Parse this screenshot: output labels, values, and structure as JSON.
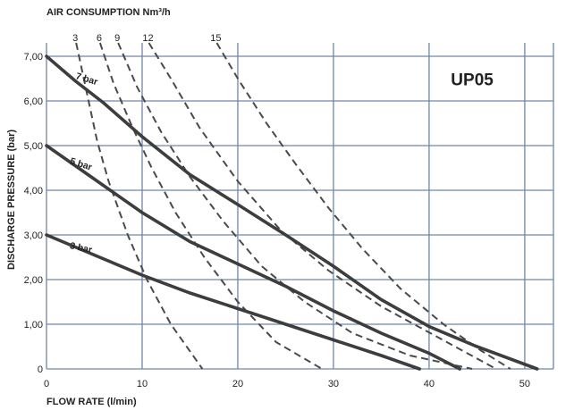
{
  "chart_data": {
    "type": "line",
    "title": "UP05",
    "xlabel": "FLOW RATE (l/min)",
    "ylabel": "DISCHARGE PRESSURE (bar)",
    "top_axis_label": "AIR CONSUMPTION Nm³/h",
    "xlim": [
      0,
      53
    ],
    "ylim": [
      0,
      7.3
    ],
    "x_ticks": [
      {
        "value": 0,
        "label": "0"
      },
      {
        "value": 10,
        "label": "10"
      },
      {
        "value": 20,
        "label": "20"
      },
      {
        "value": 30,
        "label": "30"
      },
      {
        "value": 40,
        "label": "40"
      },
      {
        "value": 50,
        "label": "50"
      }
    ],
    "y_ticks": [
      {
        "value": 0,
        "label": "0"
      },
      {
        "value": 1,
        "label": "1,00"
      },
      {
        "value": 2,
        "label": "2,00"
      },
      {
        "value": 3,
        "label": "3,00"
      },
      {
        "value": 4,
        "label": "4,00"
      },
      {
        "value": 5,
        "label": "5,00"
      },
      {
        "value": 6,
        "label": "6,00"
      },
      {
        "value": 7,
        "label": "7,00"
      }
    ],
    "grid": true,
    "series": [
      {
        "name": "7 bar",
        "style": "solid",
        "points": [
          [
            0,
            7.0
          ],
          [
            3,
            6.45
          ],
          [
            6,
            5.95
          ],
          [
            10,
            5.2
          ],
          [
            15,
            4.35
          ],
          [
            20,
            3.68
          ],
          [
            25,
            3.0
          ],
          [
            30,
            2.3
          ],
          [
            35,
            1.55
          ],
          [
            40,
            0.95
          ],
          [
            45,
            0.5
          ],
          [
            51.3,
            0.0
          ]
        ]
      },
      {
        "name": "5 bar",
        "style": "solid",
        "points": [
          [
            0,
            5.0
          ],
          [
            3,
            4.55
          ],
          [
            6,
            4.1
          ],
          [
            10,
            3.5
          ],
          [
            15,
            2.85
          ],
          [
            20,
            2.35
          ],
          [
            25,
            1.85
          ],
          [
            30,
            1.3
          ],
          [
            35,
            0.8
          ],
          [
            40,
            0.35
          ],
          [
            43.2,
            0.0
          ]
        ]
      },
      {
        "name": "3 bar",
        "style": "solid",
        "points": [
          [
            0,
            3.0
          ],
          [
            5,
            2.55
          ],
          [
            10,
            2.1
          ],
          [
            15,
            1.7
          ],
          [
            20,
            1.35
          ],
          [
            25,
            1.0
          ],
          [
            30,
            0.65
          ],
          [
            35,
            0.3
          ],
          [
            39,
            0.0
          ]
        ]
      }
    ],
    "air_consumption_curves": [
      {
        "name": "3",
        "points": [
          [
            3.1,
            7.3
          ],
          [
            4.2,
            6.2
          ],
          [
            5.3,
            5.1
          ],
          [
            6.5,
            4.2
          ],
          [
            8.5,
            3.0
          ],
          [
            10.5,
            2.0
          ],
          [
            13,
            1.0
          ],
          [
            16.3,
            0.0
          ]
        ]
      },
      {
        "name": "6",
        "points": [
          [
            5.6,
            7.3
          ],
          [
            7,
            6.4
          ],
          [
            9,
            5.4
          ],
          [
            11,
            4.5
          ],
          [
            13.5,
            3.5
          ],
          [
            16.5,
            2.5
          ],
          [
            20,
            1.5
          ],
          [
            24,
            0.6
          ],
          [
            28.8,
            0.0
          ]
        ]
      },
      {
        "name": "9",
        "points": [
          [
            7.5,
            7.3
          ],
          [
            9.5,
            6.3
          ],
          [
            12,
            5.3
          ],
          [
            15,
            4.3
          ],
          [
            18.5,
            3.3
          ],
          [
            22.5,
            2.3
          ],
          [
            27,
            1.5
          ],
          [
            32,
            0.8
          ],
          [
            38,
            0.3
          ],
          [
            44.5,
            0.0
          ]
        ]
      },
      {
        "name": "12",
        "points": [
          [
            10.7,
            7.3
          ],
          [
            13,
            6.5
          ],
          [
            16,
            5.4
          ],
          [
            20,
            4.2
          ],
          [
            24.5,
            3.1
          ],
          [
            29.5,
            2.2
          ],
          [
            35,
            1.4
          ],
          [
            41,
            0.7
          ],
          [
            47,
            0.0
          ]
        ]
      },
      {
        "name": "15",
        "points": [
          [
            17.8,
            7.3
          ],
          [
            20,
            6.5
          ],
          [
            23,
            5.5
          ],
          [
            26,
            4.6
          ],
          [
            29.5,
            3.6
          ],
          [
            33,
            2.7
          ],
          [
            37,
            1.8
          ],
          [
            41.5,
            1.0
          ],
          [
            45.5,
            0.4
          ],
          [
            48.5,
            0.0
          ]
        ]
      }
    ],
    "series_labels": [
      {
        "name": "7 bar",
        "x": 3.0,
        "y": 6.5,
        "angle": 17
      },
      {
        "name": "5 bar",
        "x": 2.4,
        "y": 4.6,
        "angle": 18
      },
      {
        "name": "3 bar",
        "x": 2.4,
        "y": 2.7,
        "angle": 12
      }
    ],
    "model_label_position": {
      "x": 44.5,
      "y": 6.35
    }
  }
}
